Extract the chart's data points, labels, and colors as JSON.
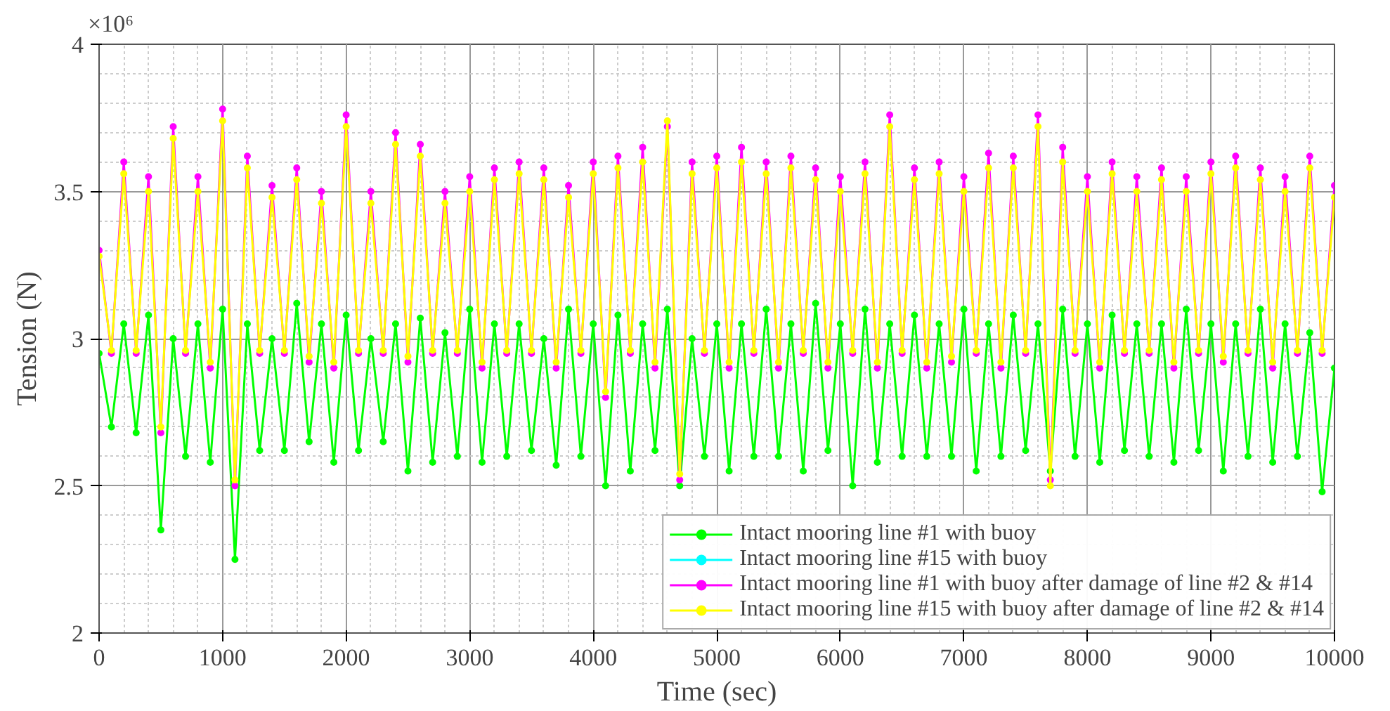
{
  "chart_data": {
    "type": "line",
    "xlabel": "Time (sec)",
    "ylabel": "Tension (N)",
    "annotations": [
      "×10⁶"
    ],
    "xlim": [
      0,
      10000
    ],
    "xticks": [
      0,
      1000,
      2000,
      3000,
      4000,
      5000,
      6000,
      7000,
      8000,
      9000,
      10000
    ],
    "ylim": [
      2,
      4
    ],
    "yticks": [
      2,
      2.5,
      3,
      3.5,
      4
    ],
    "grid": true,
    "legend": "bottom right",
    "marker": "circle",
    "line_style": "solid",
    "x": [
      0,
      100,
      200,
      300,
      400,
      500,
      600,
      700,
      800,
      900,
      1000,
      1100,
      1200,
      1300,
      1400,
      1500,
      1600,
      1700,
      1800,
      1900,
      2000,
      2100,
      2200,
      2300,
      2400,
      2500,
      2600,
      2700,
      2800,
      2900,
      3000,
      3100,
      3200,
      3300,
      3400,
      3500,
      3600,
      3700,
      3800,
      3900,
      4000,
      4100,
      4200,
      4300,
      4400,
      4500,
      4600,
      4700,
      4800,
      4900,
      5000,
      5100,
      5200,
      5300,
      5400,
      5500,
      5600,
      5700,
      5800,
      5900,
      6000,
      6100,
      6200,
      6300,
      6400,
      6500,
      6600,
      6700,
      6800,
      6900,
      7000,
      7100,
      7200,
      7300,
      7400,
      7500,
      7600,
      7700,
      7800,
      7900,
      8000,
      8100,
      8200,
      8300,
      8400,
      8500,
      8600,
      8700,
      8800,
      8900,
      9000,
      9100,
      9200,
      9300,
      9400,
      9500,
      9600,
      9700,
      9800,
      9900,
      10000
    ],
    "series": [
      {
        "name": "Intact mooring line #1 with buoy",
        "color": "#00ff00",
        "values": [
          2.95,
          2.7,
          3.05,
          2.68,
          3.08,
          2.35,
          3.0,
          2.6,
          3.05,
          2.58,
          3.1,
          2.25,
          3.05,
          2.62,
          3.0,
          2.62,
          3.12,
          2.65,
          3.05,
          2.58,
          3.08,
          2.62,
          3.0,
          2.65,
          3.05,
          2.55,
          3.07,
          2.58,
          3.02,
          2.6,
          3.1,
          2.58,
          3.05,
          2.6,
          3.05,
          2.62,
          3.0,
          2.57,
          3.1,
          2.6,
          3.05,
          2.5,
          3.08,
          2.55,
          3.05,
          2.62,
          3.1,
          2.5,
          3.0,
          2.6,
          3.05,
          2.55,
          3.05,
          2.6,
          3.1,
          2.6,
          3.05,
          2.55,
          3.12,
          2.62,
          3.05,
          2.5,
          3.1,
          2.58,
          3.05,
          2.6,
          3.08,
          2.6,
          3.05,
          2.6,
          3.1,
          2.55,
          3.05,
          2.6,
          3.08,
          2.62,
          3.05,
          2.55,
          3.1,
          2.6,
          3.05,
          2.58,
          3.08,
          2.62,
          3.05,
          2.6,
          3.05,
          2.58,
          3.1,
          2.62,
          3.05,
          2.55,
          3.05,
          2.6,
          3.1,
          2.58,
          3.05,
          2.6,
          3.02,
          2.48,
          2.9
        ]
      },
      {
        "name": "Intact mooring line #15 with buoy",
        "color": "#00ffff",
        "values": [
          null,
          null,
          null,
          null,
          null,
          null,
          null,
          null,
          null,
          null,
          null,
          null,
          null,
          null,
          null,
          null,
          null,
          null,
          null,
          null,
          null,
          null,
          null,
          null,
          null,
          null,
          null,
          null,
          null,
          null,
          null,
          null,
          null,
          null,
          null,
          null,
          null,
          null,
          null,
          null,
          null,
          null,
          null,
          null,
          null,
          null,
          null,
          null,
          null,
          null,
          null,
          null,
          null,
          null,
          null,
          null,
          null,
          null,
          null,
          null,
          null,
          null,
          null,
          null,
          null,
          null,
          null,
          null,
          null,
          null,
          null,
          null,
          null,
          null,
          null,
          null,
          null,
          null,
          null,
          null,
          null,
          null,
          null,
          null,
          null,
          null,
          null,
          null,
          null,
          null,
          null,
          null,
          null,
          null,
          null,
          null,
          null,
          null,
          null,
          null,
          null
        ]
      },
      {
        "name": "Intact mooring line #1 with buoy after damage of line #2 & #14",
        "color": "#ff00ff",
        "values": [
          3.3,
          2.95,
          3.6,
          2.95,
          3.55,
          2.68,
          3.72,
          2.95,
          3.55,
          2.9,
          3.78,
          2.5,
          3.62,
          2.95,
          3.52,
          2.95,
          3.58,
          2.92,
          3.5,
          2.9,
          3.76,
          2.95,
          3.5,
          2.95,
          3.7,
          2.92,
          3.66,
          2.95,
          3.5,
          2.95,
          3.55,
          2.9,
          3.58,
          2.95,
          3.6,
          2.95,
          3.58,
          2.9,
          3.52,
          2.95,
          3.6,
          2.8,
          3.62,
          2.95,
          3.65,
          2.9,
          3.72,
          2.52,
          3.6,
          2.95,
          3.62,
          2.9,
          3.65,
          2.95,
          3.6,
          2.9,
          3.62,
          2.95,
          3.58,
          2.9,
          3.55,
          2.95,
          3.6,
          2.9,
          3.76,
          2.95,
          3.58,
          2.9,
          3.6,
          2.92,
          3.55,
          2.95,
          3.63,
          2.9,
          3.62,
          2.95,
          3.76,
          2.52,
          3.65,
          2.95,
          3.55,
          2.9,
          3.6,
          2.95,
          3.55,
          2.95,
          3.58,
          2.9,
          3.55,
          2.95,
          3.6,
          2.92,
          3.62,
          2.95,
          3.58,
          2.9,
          3.55,
          2.95,
          3.62,
          2.95,
          3.52
        ]
      },
      {
        "name": "Intact mooring line #15 with buoy after damage of line #2 & #14",
        "color": "#ffff00",
        "values": [
          3.28,
          2.96,
          3.56,
          2.96,
          3.5,
          2.7,
          3.68,
          2.96,
          3.5,
          2.92,
          3.74,
          2.52,
          3.58,
          2.96,
          3.48,
          2.96,
          3.54,
          2.94,
          3.46,
          2.92,
          3.72,
          2.96,
          3.46,
          2.96,
          3.66,
          2.94,
          3.62,
          2.96,
          3.46,
          2.96,
          3.5,
          2.92,
          3.54,
          2.96,
          3.56,
          2.96,
          3.54,
          2.92,
          3.48,
          2.96,
          3.56,
          2.82,
          3.58,
          2.96,
          3.6,
          2.92,
          3.74,
          2.54,
          3.56,
          2.96,
          3.58,
          2.92,
          3.6,
          2.96,
          3.56,
          2.92,
          3.58,
          2.96,
          3.54,
          2.92,
          3.5,
          2.96,
          3.56,
          2.92,
          3.72,
          2.96,
          3.54,
          2.92,
          3.56,
          2.94,
          3.5,
          2.96,
          3.58,
          2.92,
          3.58,
          2.96,
          3.72,
          2.5,
          3.6,
          2.96,
          3.5,
          2.92,
          3.56,
          2.96,
          3.5,
          2.96,
          3.54,
          2.92,
          3.5,
          2.96,
          3.56,
          2.94,
          3.58,
          2.96,
          3.54,
          2.92,
          3.5,
          2.96,
          3.58,
          2.96,
          3.48
        ]
      }
    ]
  }
}
